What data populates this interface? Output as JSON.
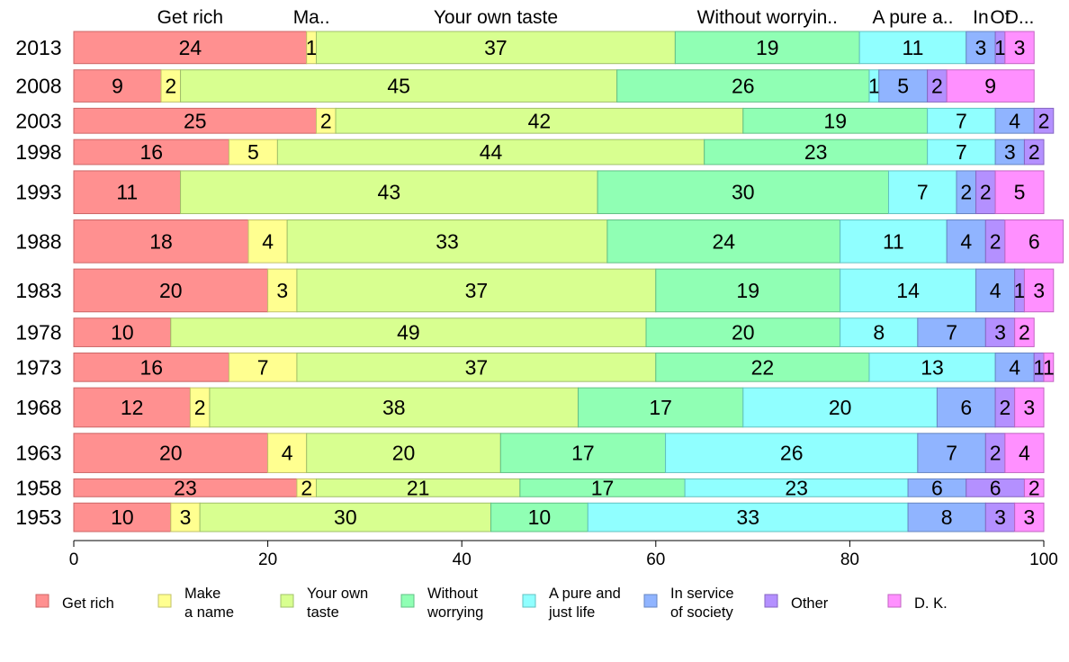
{
  "chart_data": {
    "type": "bar",
    "orientation": "horizontal",
    "stacked": true,
    "categories": [
      "2013",
      "2008",
      "2003",
      "1998",
      "1993",
      "1988",
      "1983",
      "1978",
      "1973",
      "1968",
      "1963",
      "1958",
      "1953"
    ],
    "row_weights": [
      9,
      9,
      7,
      7,
      12,
      12,
      12,
      8,
      8,
      11,
      11,
      5,
      8
    ],
    "xlim": [
      0,
      100
    ],
    "xticks": [
      0,
      20,
      40,
      60,
      80,
      100
    ],
    "top_labels": [
      "Get rich",
      "Ma..",
      "Your own taste",
      "Without worryin..",
      "A pure a..",
      "In",
      "Ot",
      "D..."
    ],
    "legend_position": "bottom",
    "grid": false,
    "series": [
      {
        "name": "Get rich",
        "legend": [
          "Get rich"
        ],
        "color": "#ff9090",
        "stroke": "#cc6666",
        "values": [
          24,
          9,
          25,
          16,
          11,
          18,
          20,
          10,
          16,
          12,
          20,
          23,
          10
        ]
      },
      {
        "name": "Make a name",
        "legend": [
          "Make",
          "a name"
        ],
        "color": "#ffff90",
        "stroke": "#c2c26a",
        "values": [
          1,
          2,
          2,
          5,
          0,
          4,
          3,
          0,
          7,
          2,
          4,
          2,
          3
        ]
      },
      {
        "name": "Your own taste",
        "legend": [
          "Your own",
          "taste"
        ],
        "color": "#d8ff90",
        "stroke": "#a0c06a",
        "values": [
          37,
          45,
          42,
          44,
          43,
          33,
          37,
          49,
          37,
          38,
          20,
          21,
          30
        ]
      },
      {
        "name": "Without worrying",
        "legend": [
          "Without",
          "worrying"
        ],
        "color": "#90ffb4",
        "stroke": "#62c086",
        "values": [
          19,
          26,
          19,
          23,
          30,
          24,
          19,
          20,
          22,
          17,
          17,
          17,
          10
        ]
      },
      {
        "name": "A pure and just life",
        "legend": [
          "A pure and",
          "just life"
        ],
        "color": "#90ffff",
        "stroke": "#62c2c2",
        "values": [
          11,
          1,
          7,
          7,
          7,
          11,
          14,
          8,
          13,
          20,
          26,
          23,
          33
        ]
      },
      {
        "name": "In service of society",
        "legend": [
          "In service",
          "of society"
        ],
        "color": "#90b4ff",
        "stroke": "#6686c2",
        "values": [
          3,
          5,
          4,
          3,
          2,
          4,
          4,
          7,
          4,
          6,
          7,
          6,
          8
        ]
      },
      {
        "name": "Other",
        "legend": [
          "Other"
        ],
        "color": "#b490ff",
        "stroke": "#8666c2",
        "values": [
          1,
          2,
          2,
          2,
          2,
          2,
          1,
          3,
          1,
          2,
          2,
          6,
          3
        ]
      },
      {
        "name": "D. K.",
        "legend": [
          "D. K."
        ],
        "color": "#ff90ff",
        "stroke": "#c266c2",
        "values": [
          3,
          9,
          0,
          0,
          5,
          6,
          3,
          2,
          1,
          3,
          4,
          2,
          3
        ]
      }
    ]
  }
}
